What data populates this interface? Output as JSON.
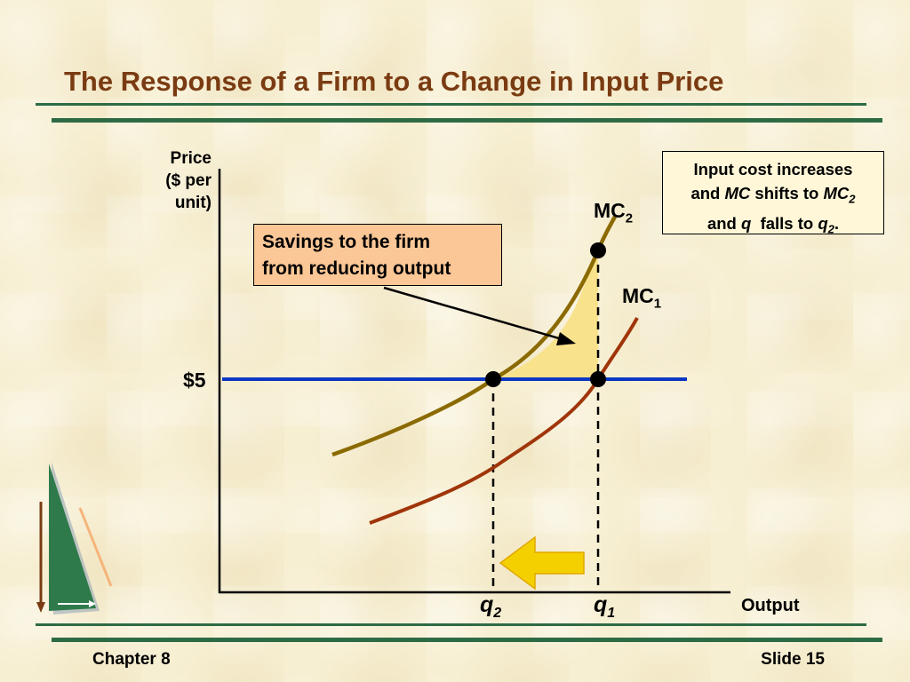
{
  "slide": {
    "title": "The Response of a Firm to a Change in Input Price",
    "footer_left": "Chapter 8",
    "footer_right": "Slide 15"
  },
  "axes": {
    "y_label_lines": [
      "Price",
      "($ per",
      "unit)"
    ],
    "x_label": "Output",
    "price_tick": "$5"
  },
  "curves": {
    "mc2": {
      "name": "MC",
      "sub": "2"
    },
    "mc1": {
      "name": "MC",
      "sub": "1"
    }
  },
  "quantities": {
    "q2": {
      "name": "q",
      "sub": "2"
    },
    "q1": {
      "name": "q",
      "sub": "1"
    }
  },
  "callouts": {
    "savings_lines": [
      "Savings to the firm",
      "from reducing output"
    ],
    "note": {
      "line1": "Input cost increases",
      "line2_a": "and ",
      "line2_mc": "MC",
      "line2_b": " shifts to ",
      "line2_mc2": "MC",
      "line2_mc2_sub": "2",
      "line3_a": "and ",
      "line3_q": "q",
      "line3_b": "  falls to ",
      "line3_q2": "q",
      "line3_q2_sub": "2",
      "line3_end": "."
    }
  },
  "colors": {
    "mc2_curve": "#8b6a00",
    "mc1_curve": "#a0350a",
    "price_line": "#0a36c4",
    "savings_area": "#f9e28c",
    "arrow": "#f5d000",
    "axis": "#000000"
  }
}
